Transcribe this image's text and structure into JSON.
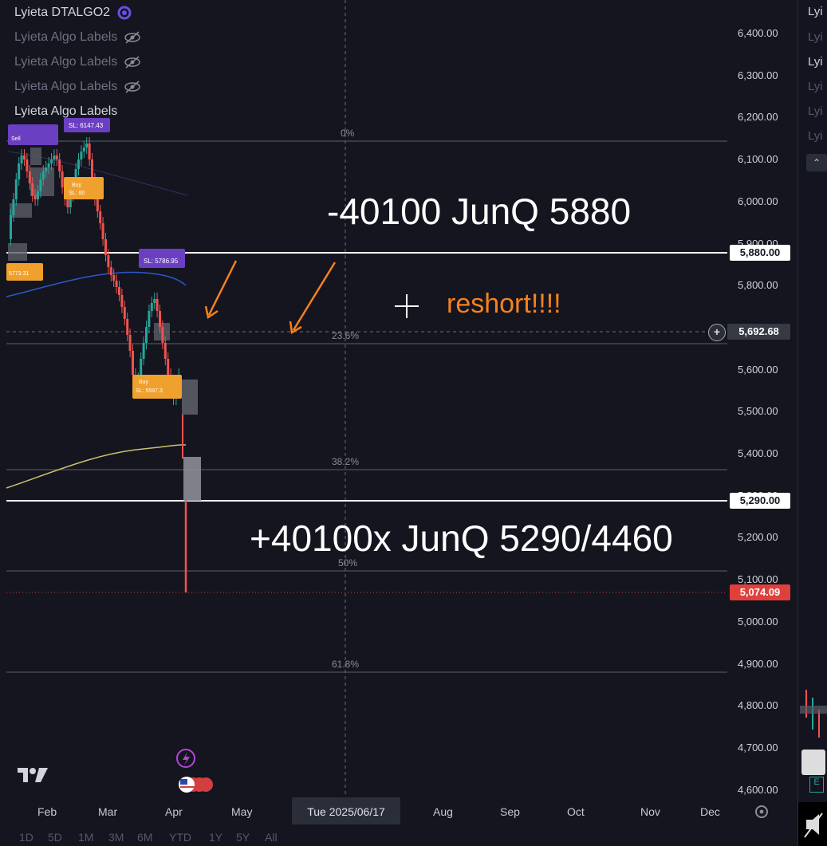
{
  "legend": {
    "title": "Lyieta DTALGO2",
    "rows": [
      "Lyieta Algo Labels",
      "Lyieta Algo Labels",
      "Lyieta Algo Labels",
      "Lyieta Algo Labels"
    ]
  },
  "price_axis": {
    "ticks": [
      "6,400.00",
      "6,300.00",
      "6,200.00",
      "6,100.00",
      "6,000.00",
      "5,900.00",
      "5,800.00",
      "5,700.00",
      "5,600.00",
      "5,500.00",
      "5,400.00",
      "5,300.00",
      "5,200.00",
      "5,100.00",
      "5,000.00",
      "4,900.00",
      "4,800.00",
      "4,700.00",
      "4,600.00"
    ],
    "tag_upper": "5,880.00",
    "tag_cursor": "5,692.68",
    "tag_lower": "5,290.00",
    "tag_last": "5,074.09"
  },
  "time_axis": {
    "months": [
      "Feb",
      "Mar",
      "Apr",
      "May",
      "Aug",
      "Sep",
      "Oct",
      "Nov",
      "Dec"
    ],
    "crosshair_date": "Tue 2025/06/17"
  },
  "fib": [
    "0%",
    "23.6%",
    "38.2%",
    "50%",
    "61.8%"
  ],
  "annotations": {
    "short_text": "-40100 JunQ 5880",
    "long_text": "+40100x JunQ 5290/4460",
    "reshort_text": "reshort!!!!"
  },
  "signals": {
    "sl1": "SL: 6147.43",
    "sl2": "SL: 5786.95",
    "sl3": "SL: 5597.3",
    "sl4": "5773.31",
    "sl5": "SL: 60",
    "sell1": "Sell",
    "buy1": "Buy",
    "buy2": "Buy"
  },
  "bottom_toolbar": {
    "timeframes": [
      "1D",
      "5D",
      "1M",
      "3M",
      "6M",
      "YTD",
      "1Y",
      "5Y",
      "All"
    ]
  },
  "colors": {
    "background": "#14151f",
    "up_candle": "#26a69a",
    "down_candle": "#ef5350",
    "annotation_orange": "#f5821f",
    "last_price_red": "#e0403c"
  }
}
